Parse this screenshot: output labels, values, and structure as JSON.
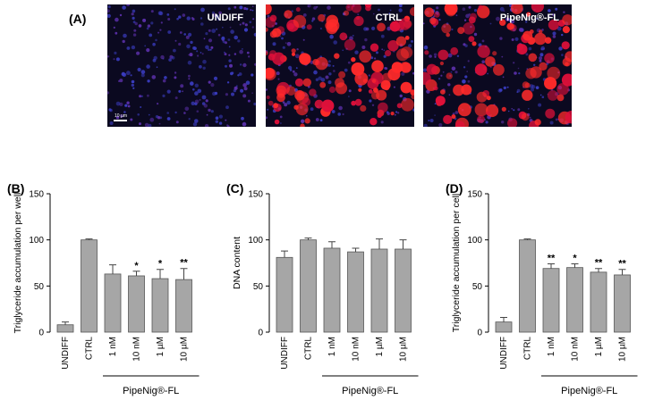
{
  "micrographs": {
    "panel_label": "(A)",
    "images": [
      {
        "label": "UNDIFF"
      },
      {
        "label": "CTRL"
      },
      {
        "label": "PipeNig®-FL"
      }
    ],
    "scale_bar_label": "10 µm"
  },
  "chart_data": [
    {
      "type": "bar",
      "panel": "(B)",
      "categories": [
        "UNDIFF",
        "CTRL",
        "1 nM",
        "10 nM",
        "1 µM",
        "10 µM"
      ],
      "values": [
        8,
        100,
        63,
        61,
        58,
        57
      ],
      "errors": [
        3,
        1,
        10,
        5,
        10,
        12
      ],
      "significance": [
        "",
        "",
        "",
        "*",
        "*",
        "**"
      ],
      "ylabel": "Triglyceride accumulation per well",
      "ylim": [
        0,
        150
      ],
      "yticks": [
        "0",
        "50",
        "100",
        "150"
      ],
      "group_label": "PipeNig®-FL",
      "bar_color": "#a6a6a6"
    },
    {
      "type": "bar",
      "panel": "(C)",
      "categories": [
        "UNDIFF",
        "CTRL",
        "1 nM",
        "10 nM",
        "1 µM",
        "10 µM"
      ],
      "values": [
        81,
        100,
        91,
        87,
        90,
        90
      ],
      "errors": [
        7,
        2,
        7,
        4,
        11,
        10
      ],
      "significance": [
        "",
        "",
        "",
        "",
        "",
        ""
      ],
      "ylabel": "DNA content",
      "ylim": [
        0,
        150
      ],
      "yticks": [
        "0",
        "50",
        "100",
        "150"
      ],
      "group_label": "PipeNig®-FL",
      "bar_color": "#a6a6a6"
    },
    {
      "type": "bar",
      "panel": "(D)",
      "categories": [
        "UNDIFF",
        "CTRL",
        "1 nM",
        "10 nM",
        "1 µM",
        "10 µM"
      ],
      "values": [
        11,
        100,
        69,
        70,
        65,
        62
      ],
      "errors": [
        5,
        1,
        5,
        4,
        4,
        6
      ],
      "significance": [
        "",
        "",
        "**",
        "*",
        "**",
        "**"
      ],
      "ylabel": "Triglyceride accumulation per cell",
      "ylim": [
        0,
        150
      ],
      "yticks": [
        "0",
        "50",
        "100",
        "150"
      ],
      "group_label": "PipeNig®-FL",
      "bar_color": "#a6a6a6"
    }
  ]
}
